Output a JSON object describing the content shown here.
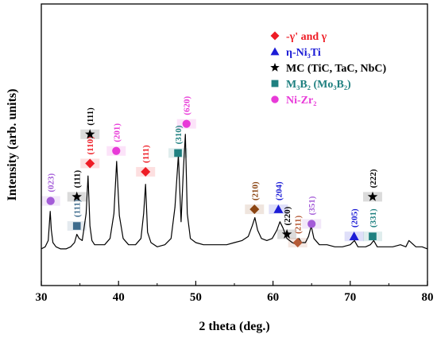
{
  "chart_data": {
    "type": "line",
    "title": "",
    "xlabel": "2 theta (deg.)",
    "ylabel": "Intensity (arb. units)",
    "xlim": [
      30,
      80
    ],
    "ylim": [
      0,
      100
    ],
    "xticks": [
      30,
      40,
      50,
      60,
      70,
      80
    ],
    "yticks": "hidden",
    "grid": false,
    "legend_position": "top-right",
    "colors": {
      "gamma": "#ee1c25",
      "eta": "#1c1cd6",
      "mc": "#000000",
      "m3b2": "#1f8080",
      "nizr": "#e83ad8",
      "line": "#000000"
    },
    "legend": [
      {
        "marker": "diamond",
        "color": "#ee1c25",
        "label": "-γ' and γ"
      },
      {
        "marker": "triangle",
        "color": "#1c1cd6",
        "label": "η-Ni₃Ti"
      },
      {
        "marker": "star",
        "color": "#000000",
        "label": "MC (TiC, TaC, NbC)"
      },
      {
        "marker": "square",
        "color": "#1f8080",
        "label": "M₃B₂ (Mo₃B₂)"
      },
      {
        "marker": "circle",
        "color": "#e83ad8",
        "label": "Ni-Zr₂"
      }
    ],
    "series": [
      {
        "x": [
          30,
          30.5,
          30.9,
          31.15,
          31.3,
          31.5,
          31.9,
          32.5,
          33.2,
          33.8,
          34.3,
          34.6,
          34.9,
          35.3,
          35.8,
          36.05,
          36.3,
          36.55,
          36.9,
          37.5,
          38.2,
          38.9,
          39.4,
          39.75,
          40.1,
          40.6,
          41.3,
          42.2,
          42.9,
          43.25,
          43.5,
          43.75,
          44.2,
          45,
          46,
          46.8,
          47.3,
          47.75,
          48.1,
          48.4,
          48.65,
          48.9,
          49.3,
          50,
          51,
          52,
          53,
          54,
          55,
          56,
          56.8,
          57.3,
          57.65,
          58,
          58.5,
          59.2,
          59.9,
          60.5,
          60.9,
          61.3,
          61.8,
          62.5,
          63.1,
          63.35,
          63.7,
          64.2,
          64.6,
          64.95,
          65.3,
          66,
          67,
          68,
          69,
          70,
          70.55,
          71,
          72,
          72.6,
          73.05,
          73.5,
          74.5,
          75.5,
          76.5,
          77.2,
          77.6,
          78.5,
          79.3,
          80
        ],
        "y": [
          5,
          6,
          9,
          23,
          14,
          8,
          6,
          5,
          5,
          6,
          8,
          12,
          10,
          9,
          22,
          40,
          16,
          9,
          7,
          7,
          7,
          10,
          22,
          47,
          21,
          10,
          7,
          7,
          10,
          22,
          36,
          13,
          8,
          6,
          7,
          10,
          25,
          50,
          18,
          43,
          60,
          22,
          10,
          8,
          7,
          7,
          7,
          7,
          8,
          9,
          11,
          16,
          20,
          14,
          10,
          9,
          10,
          14,
          18,
          15,
          10,
          8,
          7,
          10,
          8,
          8,
          11,
          16,
          10,
          7,
          7,
          6,
          6,
          7,
          9,
          6,
          6,
          7,
          9,
          6,
          6,
          6,
          7,
          6,
          9,
          6,
          6,
          5
        ]
      }
    ],
    "annotations": [
      {
        "x": 31.2,
        "y": 28,
        "marker": "circle",
        "color": "#a45cd8",
        "label": "(023)"
      },
      {
        "x": 34.6,
        "y": 16,
        "marker": "square",
        "color": "#3d6b8c",
        "label": "(111)"
      },
      {
        "x": 34.6,
        "y": 30,
        "marker": "star",
        "color": "#000000",
        "label": "(111)"
      },
      {
        "x": 36.3,
        "y": 46,
        "marker": "diamond",
        "color": "#ee1c25",
        "label": "(110)"
      },
      {
        "x": 36.3,
        "y": 60,
        "marker": "star",
        "color": "#000000",
        "label": "(111)"
      },
      {
        "x": 39.7,
        "y": 52,
        "marker": "circle",
        "color": "#e83ad8",
        "label": "(201)"
      },
      {
        "x": 43.5,
        "y": 42,
        "marker": "diamond",
        "color": "#ee1c25",
        "label": "(111)"
      },
      {
        "x": 47.7,
        "y": 51,
        "marker": "square",
        "color": "#1f8080",
        "label": "(310)"
      },
      {
        "x": 48.8,
        "y": 65,
        "marker": "circle",
        "color": "#e83ad8",
        "label": "(620)"
      },
      {
        "x": 57.6,
        "y": 24,
        "marker": "diamond",
        "color": "#8b4513",
        "label": "(210)"
      },
      {
        "x": 60.7,
        "y": 24,
        "marker": "triangle",
        "color": "#1c1cd6",
        "label": "(204)"
      },
      {
        "x": 61.8,
        "y": 12,
        "marker": "star",
        "color": "#000000",
        "label": "(220)"
      },
      {
        "x": 63.2,
        "y": 8,
        "marker": "diamond",
        "color": "#b55a36",
        "label": "(211)"
      },
      {
        "x": 65.0,
        "y": 17,
        "marker": "circle",
        "color": "#a45cd8",
        "label": "(351)"
      },
      {
        "x": 70.5,
        "y": 11,
        "marker": "triangle",
        "color": "#1c1cd6",
        "label": "(205)"
      },
      {
        "x": 72.9,
        "y": 11,
        "marker": "square",
        "color": "#1f8080",
        "label": "(331)"
      },
      {
        "x": 72.9,
        "y": 30,
        "marker": "star",
        "color": "#000000",
        "label": "(222)"
      }
    ]
  }
}
